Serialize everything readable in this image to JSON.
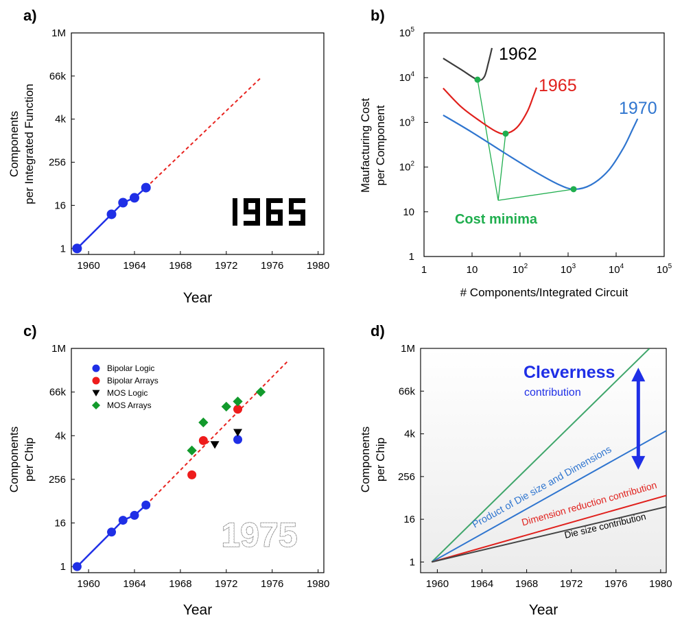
{
  "panels": {
    "a": {
      "label": "a)"
    },
    "b": {
      "label": "b)"
    },
    "c": {
      "label": "c)"
    },
    "d": {
      "label": "d)"
    }
  },
  "chart_data": [
    {
      "panel": "a)",
      "type": "line",
      "xlabel": "Year",
      "ylabel_lines": [
        "Components",
        "per Integrated Function"
      ],
      "xlim": [
        1958.5,
        1980.5
      ],
      "ylim": [
        0.68,
        1048576
      ],
      "log_y": true,
      "log_base": 2,
      "x_ticks": [
        1960,
        1964,
        1968,
        1972,
        1976,
        1980
      ],
      "y_ticks": [
        {
          "v": 1,
          "label": "1"
        },
        {
          "v": 16,
          "label": "16"
        },
        {
          "v": 256,
          "label": "256"
        },
        {
          "v": 4096,
          "label": "4k"
        },
        {
          "v": 65536,
          "label": "66k"
        },
        {
          "v": 1048576,
          "label": "1M"
        }
      ],
      "watermark": "1965",
      "series": [
        {
          "kind": "measured",
          "points": [
            [
              1959,
              1
            ],
            [
              1962,
              9
            ],
            [
              1963,
              19
            ],
            [
              1964,
              26
            ],
            [
              1965,
              50
            ]
          ]
        },
        {
          "kind": "extrapolation",
          "points": [
            [
              1965,
              50
            ],
            [
              1975,
              58000
            ]
          ]
        }
      ]
    },
    {
      "panel": "b)",
      "type": "line",
      "xlabel": "# Components/Integrated Circuit",
      "ylabel_lines": [
        "Maufacturing Cost",
        "per Component"
      ],
      "log_x": true,
      "log_y": true,
      "xlim": [
        1,
        100000
      ],
      "ylim": [
        1,
        100000
      ],
      "x_ticks": [
        {
          "v": 1,
          "base": "1",
          "exp": ""
        },
        {
          "v": 10,
          "base": "10",
          "exp": ""
        },
        {
          "v": 100,
          "base": "10",
          "exp": "2"
        },
        {
          "v": 1000,
          "base": "10",
          "exp": "3"
        },
        {
          "v": 10000,
          "base": "10",
          "exp": "4"
        },
        {
          "v": 100000,
          "base": "10",
          "exp": "5"
        }
      ],
      "y_ticks": [
        {
          "v": 1,
          "base": "1",
          "exp": ""
        },
        {
          "v": 10,
          "base": "10",
          "exp": ""
        },
        {
          "v": 100,
          "base": "10",
          "exp": "2"
        },
        {
          "v": 1000,
          "base": "10",
          "exp": "3"
        },
        {
          "v": 10000,
          "base": "10",
          "exp": "4"
        },
        {
          "v": 100000,
          "base": "10",
          "exp": "5"
        }
      ],
      "annotation": "Cost minima",
      "series": [
        {
          "name": "1962",
          "color": "#3c3c3c",
          "minimum": [
            13,
            9000
          ],
          "points": [
            [
              2.5,
              27000
            ],
            [
              6,
              15000
            ],
            [
              13,
              9000
            ],
            [
              18,
              10500
            ],
            [
              22,
              22000
            ],
            [
              26,
              46000
            ]
          ]
        },
        {
          "name": "1965",
          "color": "#e0201c",
          "minimum": [
            50,
            560
          ],
          "points": [
            [
              2.5,
              5800
            ],
            [
              6,
              2200
            ],
            [
              15,
              1050
            ],
            [
              32,
              620
            ],
            [
              50,
              560
            ],
            [
              85,
              760
            ],
            [
              140,
              1700
            ],
            [
              190,
              3900
            ],
            [
              220,
              6000
            ]
          ]
        },
        {
          "name": "1970",
          "color": "#2f75cf",
          "minimum": [
            1300,
            32
          ],
          "points": [
            [
              2.5,
              1450
            ],
            [
              10,
              600
            ],
            [
              50,
              200
            ],
            [
              200,
              80
            ],
            [
              600,
              42
            ],
            [
              1300,
              32
            ],
            [
              3000,
              40
            ],
            [
              7000,
              85
            ],
            [
              14000,
              260
            ],
            [
              22000,
              700
            ],
            [
              28000,
              1200
            ]
          ]
        }
      ],
      "annotation_focus": [
        35,
        18
      ]
    },
    {
      "panel": "c)",
      "type": "scatter",
      "xlabel": "Year",
      "ylabel_lines": [
        "Components",
        "per Chip"
      ],
      "xlim": [
        1958.5,
        1980.5
      ],
      "ylim": [
        0.68,
        1048576
      ],
      "log_y": true,
      "log_base": 2,
      "x_ticks": [
        1960,
        1964,
        1968,
        1972,
        1976,
        1980
      ],
      "y_ticks": [
        {
          "v": 1,
          "label": "1"
        },
        {
          "v": 16,
          "label": "16"
        },
        {
          "v": 256,
          "label": "256"
        },
        {
          "v": 4096,
          "label": "4k"
        },
        {
          "v": 65536,
          "label": "66k"
        },
        {
          "v": 1048576,
          "label": "1M"
        }
      ],
      "watermark": "1975",
      "legend_position": "top-left",
      "trend": [
        {
          "kind": "measured",
          "points": [
            [
              1959,
              1
            ],
            [
              1962,
              9
            ],
            [
              1963,
              19
            ],
            [
              1964,
              26
            ],
            [
              1965,
              50
            ]
          ]
        },
        {
          "kind": "extrapolation",
          "points": [
            [
              1965,
              50
            ],
            [
              1977.4,
              480000
            ]
          ]
        }
      ],
      "series": [
        {
          "name": "Bipolar Logic",
          "marker": "circle",
          "color": "#1f2fe6",
          "points": [
            [
              1959,
              1
            ],
            [
              1962,
              9
            ],
            [
              1963,
              19
            ],
            [
              1964,
              26
            ],
            [
              1965,
              50
            ],
            [
              1973,
              3200
            ]
          ]
        },
        {
          "name": "Bipolar Arrays",
          "marker": "circle",
          "color": "#ee1c1c",
          "points": [
            [
              1969,
              340
            ],
            [
              1970,
              3000
            ],
            [
              1973,
              22000
            ]
          ]
        },
        {
          "name": "MOS Logic",
          "marker": "triangle-down",
          "color": "#000000",
          "points": [
            [
              1971,
              2300
            ],
            [
              1973,
              5000
            ]
          ]
        },
        {
          "name": "MOS Arrays",
          "marker": "diamond",
          "color": "#129a2c",
          "points": [
            [
              1969,
              1600
            ],
            [
              1970,
              9500
            ],
            [
              1972,
              26000
            ],
            [
              1973,
              36000
            ],
            [
              1975,
              66000
            ]
          ]
        }
      ]
    },
    {
      "panel": "d)",
      "type": "line",
      "xlabel": "Year",
      "ylabel_lines": [
        "Components",
        "per Chip"
      ],
      "xlim": [
        1958.5,
        1980.5
      ],
      "ylim": [
        0.5,
        1048576
      ],
      "log_y": true,
      "log_base": 2,
      "x_ticks": [
        1960,
        1964,
        1968,
        1972,
        1976,
        1980
      ],
      "y_ticks": [
        {
          "v": 1,
          "label": "1"
        },
        {
          "v": 16,
          "label": "16"
        },
        {
          "v": 256,
          "label": "256"
        },
        {
          "v": 4096,
          "label": "4k"
        },
        {
          "v": 65536,
          "label": "66k"
        },
        {
          "v": 1048576,
          "label": "1M"
        }
      ],
      "annotation_title": "Cleverness",
      "annotation_sub": "contribution",
      "arrow_year": 1978,
      "arrow_range": [
        400,
        300000
      ],
      "series": [
        {
          "name": "",
          "color": "#3fa66b",
          "points": [
            [
              1959.5,
              1
            ],
            [
              1979,
              1048576
            ]
          ]
        },
        {
          "name": "Product of Die size and Dimensions",
          "color": "#2f75cf",
          "points": [
            [
              1959.5,
              1
            ],
            [
              1980.5,
              5000
            ]
          ]
        },
        {
          "name": "Dimension reduction contribution",
          "color": "#e0201c",
          "points": [
            [
              1959.5,
              1
            ],
            [
              1980.5,
              75
            ]
          ]
        },
        {
          "name": "Die size contribution",
          "color": "#444444",
          "points": [
            [
              1959.5,
              1
            ],
            [
              1980.5,
              36
            ]
          ]
        }
      ]
    }
  ]
}
